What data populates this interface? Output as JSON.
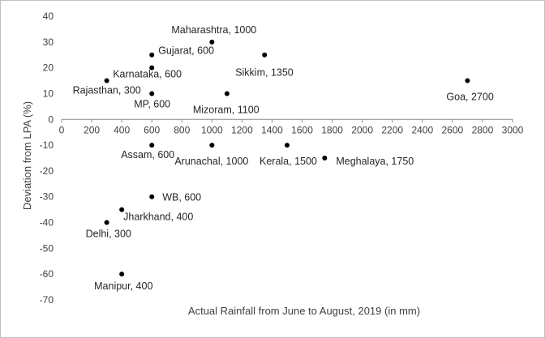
{
  "chart_data": {
    "type": "scatter",
    "title": "",
    "xlabel": "Actual Rainfall from June to August, 2019 (in mm)",
    "ylabel": "Deviation from LPA (%)",
    "xlim": [
      0,
      3000
    ],
    "ylim": [
      -70,
      40
    ],
    "xticks": [
      0,
      200,
      400,
      600,
      800,
      1000,
      1200,
      1400,
      1600,
      1800,
      2000,
      2200,
      2400,
      2600,
      2800,
      3000
    ],
    "yticks": [
      40,
      30,
      20,
      10,
      0,
      -10,
      -20,
      -30,
      -40,
      -50,
      -60,
      -70
    ],
    "grid": false,
    "legend": "none",
    "marker_color": "#000000",
    "points": [
      {
        "label": "Maharashtra, 1000",
        "x": 1000,
        "y": 30
      },
      {
        "label": "Gujarat, 600",
        "x": 600,
        "y": 25
      },
      {
        "label": "Sikkim, 1350",
        "x": 1350,
        "y": 25
      },
      {
        "label": "Karnataka, 600",
        "x": 600,
        "y": 20
      },
      {
        "label": "Rajasthan, 300",
        "x": 300,
        "y": 15
      },
      {
        "label": "Goa, 2700",
        "x": 2700,
        "y": 15
      },
      {
        "label": "MP, 600",
        "x": 600,
        "y": 10
      },
      {
        "label": "Mizoram, 1100",
        "x": 1100,
        "y": 10
      },
      {
        "label": "Assam, 600",
        "x": 600,
        "y": -10
      },
      {
        "label": "Arunachal, 1000",
        "x": 1000,
        "y": -10
      },
      {
        "label": "Kerala, 1500",
        "x": 1500,
        "y": -10
      },
      {
        "label": "Meghalaya, 1750",
        "x": 1750,
        "y": -15
      },
      {
        "label": "WB, 600",
        "x": 600,
        "y": -30
      },
      {
        "label": "Jharkhand, 400",
        "x": 400,
        "y": -35
      },
      {
        "label": "Delhi, 300",
        "x": 300,
        "y": -40
      },
      {
        "label": "Manipur, 400",
        "x": 400,
        "y": -60
      }
    ]
  }
}
